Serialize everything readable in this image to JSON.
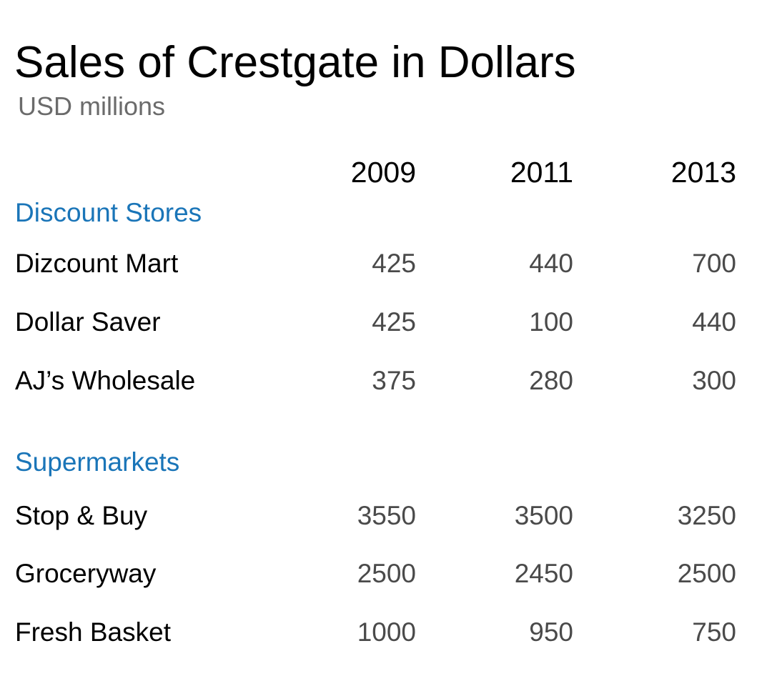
{
  "chart_data": {
    "type": "table",
    "title": "Sales of Crestgate in Dollars",
    "subtitle": "USD millions",
    "columns": [
      "2009",
      "2011",
      "2013"
    ],
    "groups": [
      {
        "name": "Discount Stores",
        "rows": [
          {
            "label": "Dizcount Mart",
            "values": [
              "425",
              "440",
              "700"
            ]
          },
          {
            "label": "Dollar Saver",
            "values": [
              "425",
              "100",
              "440"
            ]
          },
          {
            "label": "AJ’s Wholesale",
            "values": [
              "375",
              "280",
              "300"
            ]
          }
        ]
      },
      {
        "name": "Supermarkets",
        "rows": [
          {
            "label": "Stop & Buy",
            "values": [
              "3550",
              "3500",
              "3250"
            ]
          },
          {
            "label": "Groceryway",
            "values": [
              "2500",
              "2450",
              "2500"
            ]
          },
          {
            "label": "Fresh Basket",
            "values": [
              "1000",
              "950",
              "750"
            ]
          }
        ]
      }
    ]
  }
}
